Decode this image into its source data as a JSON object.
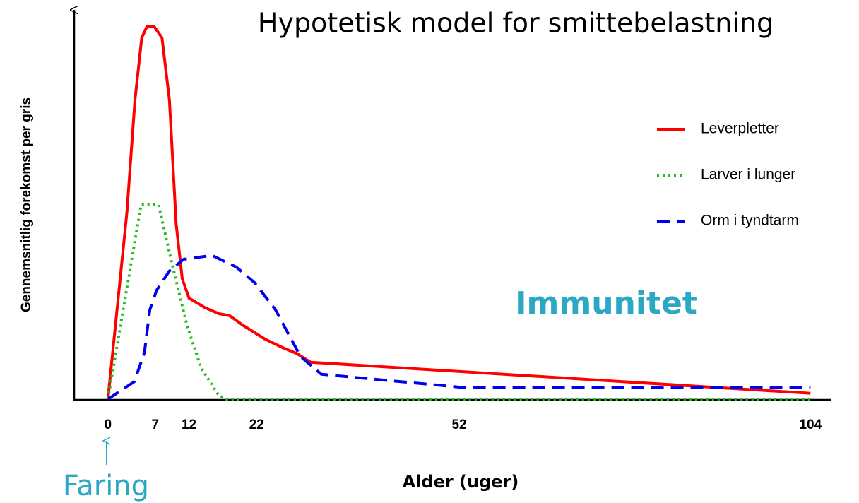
{
  "chart_data": {
    "type": "line",
    "title": "Hypotetisk model for smittebelastning",
    "x_label": "Alder (uger)",
    "y_label": "Gennemsnitlig forekomst per gris",
    "annotations": [
      "Immunitet",
      "Faring"
    ],
    "xlim": [
      -5,
      107
    ],
    "xticks": [
      0,
      7,
      12,
      22,
      52,
      104
    ],
    "ylim": [
      0,
      100
    ],
    "series": [
      {
        "name": "Leverpletter",
        "color": "#ff0000",
        "style": "solid",
        "x": [
          0,
          2.8,
          4,
          5,
          5.8,
          6.8,
          8,
          9.1,
          10.1,
          11,
          12,
          14.3,
          16.4,
          18,
          20,
          23.2,
          25.8,
          27.9,
          30,
          104
        ],
        "values": [
          0,
          48,
          77,
          93,
          96,
          96,
          93,
          77,
          45,
          31,
          26,
          23.6,
          22,
          21.5,
          19,
          15.5,
          13.3,
          11.8,
          9.5,
          1.5
        ]
      },
      {
        "name": "Larver i lunger",
        "color": "#22bb22",
        "style": "dotted",
        "x": [
          0,
          4.9,
          7.5,
          9.6,
          11.7,
          13.8,
          16.4,
          17.5,
          104
        ],
        "values": [
          0,
          50,
          50,
          34,
          19,
          8,
          1,
          0,
          0
        ]
      },
      {
        "name": "Orm i tyndtarm",
        "color": "#0000ee",
        "style": "dashed",
        "x": [
          0,
          3.9,
          5.4,
          6.2,
          7.2,
          9.1,
          11.2,
          15.4,
          19,
          21.7,
          24.8,
          28.5,
          31.6,
          52,
          104
        ],
        "values": [
          0,
          4.5,
          12,
          23,
          28,
          33,
          36,
          37,
          34,
          30,
          23,
          11,
          6.4,
          3.1,
          3.1
        ]
      }
    ]
  }
}
